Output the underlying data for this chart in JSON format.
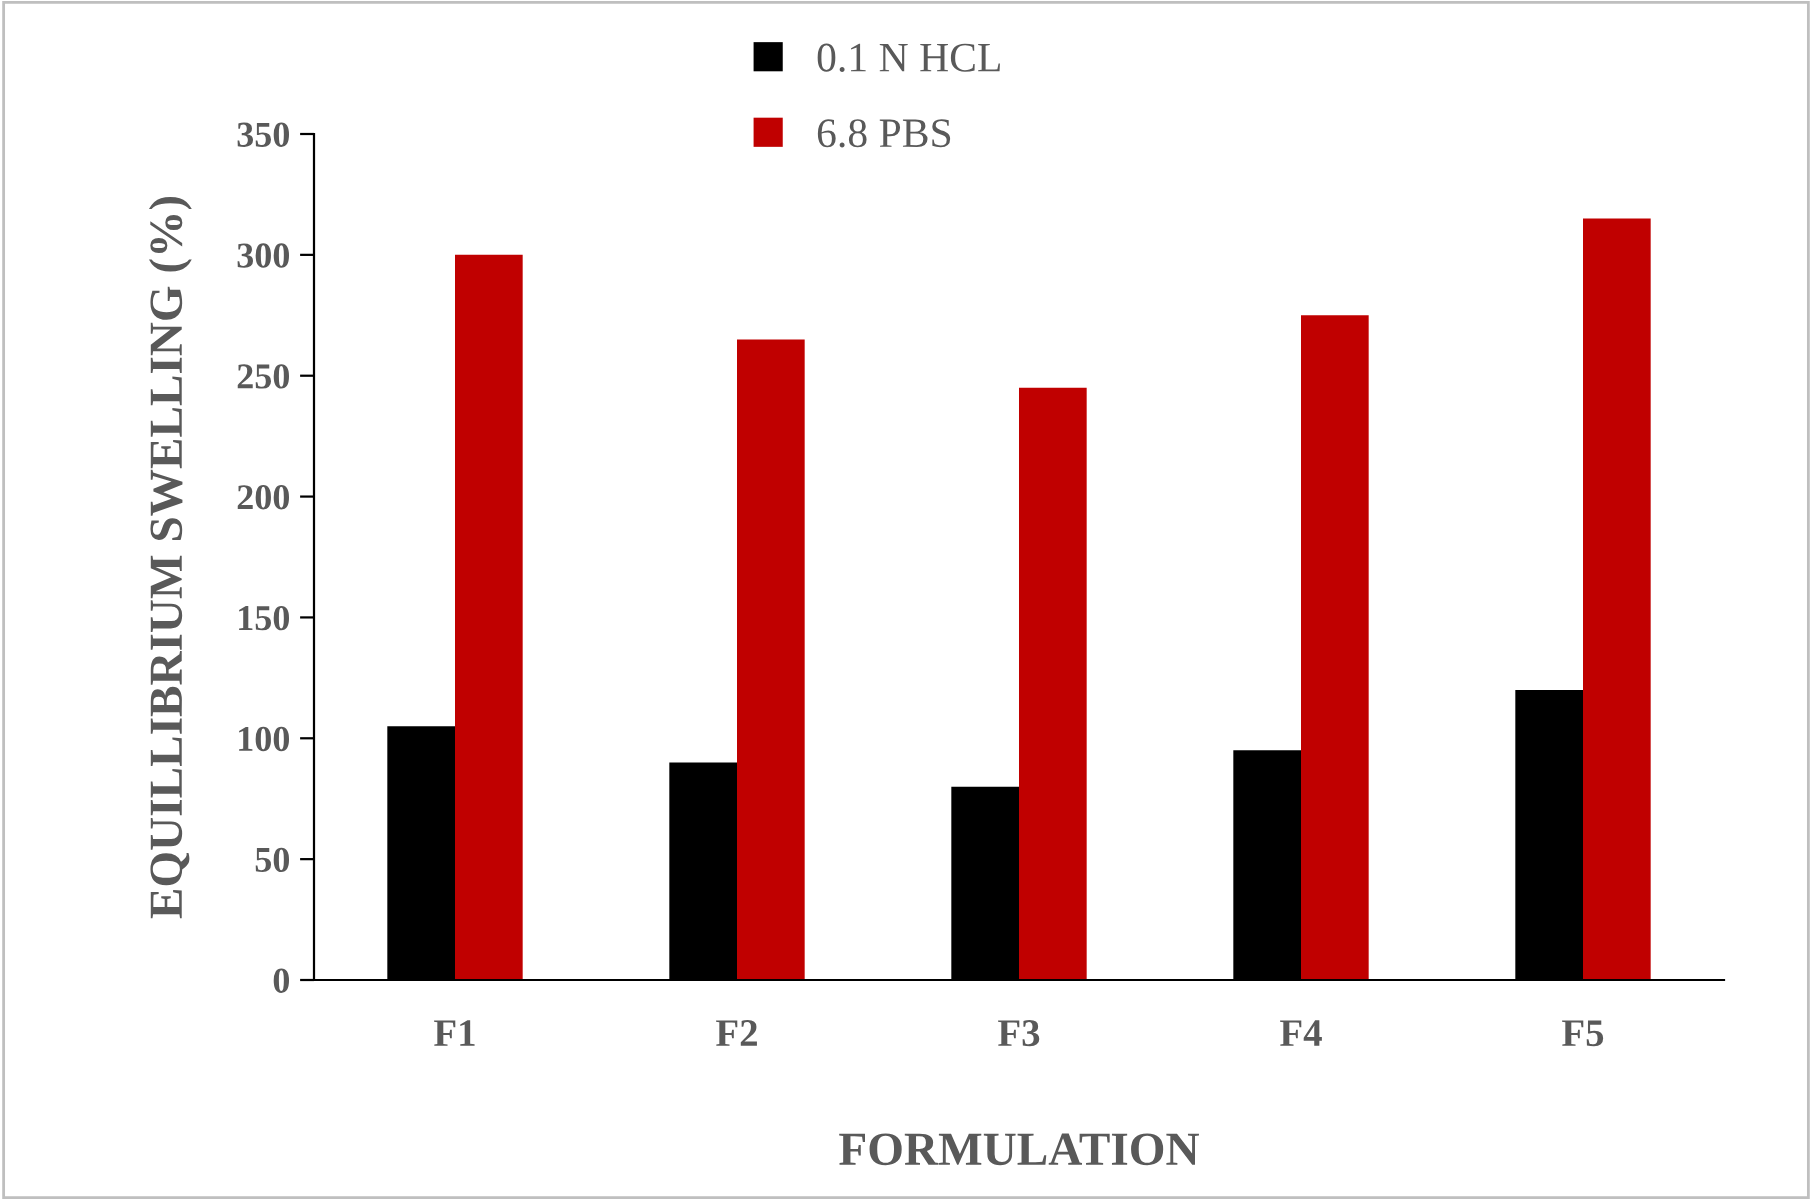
{
  "chart_data": {
    "type": "bar",
    "xlabel": "FORMULATION",
    "ylabel": "EQUILLIBRIUM SWELLING (%)",
    "categories": [
      "F1",
      "F2",
      "F3",
      "F4",
      "F5"
    ],
    "series": [
      {
        "name": "0.1 N HCL",
        "color": "#000000",
        "values": [
          105,
          90,
          80,
          95,
          120
        ]
      },
      {
        "name": "6.8 PBS",
        "color": "#c00000",
        "values": [
          300,
          265,
          245,
          275,
          315
        ]
      }
    ],
    "ylim": [
      0,
      350
    ],
    "yticks": [
      0,
      50,
      100,
      150,
      200,
      250,
      300,
      350
    ],
    "grid": false,
    "legend": "top"
  }
}
